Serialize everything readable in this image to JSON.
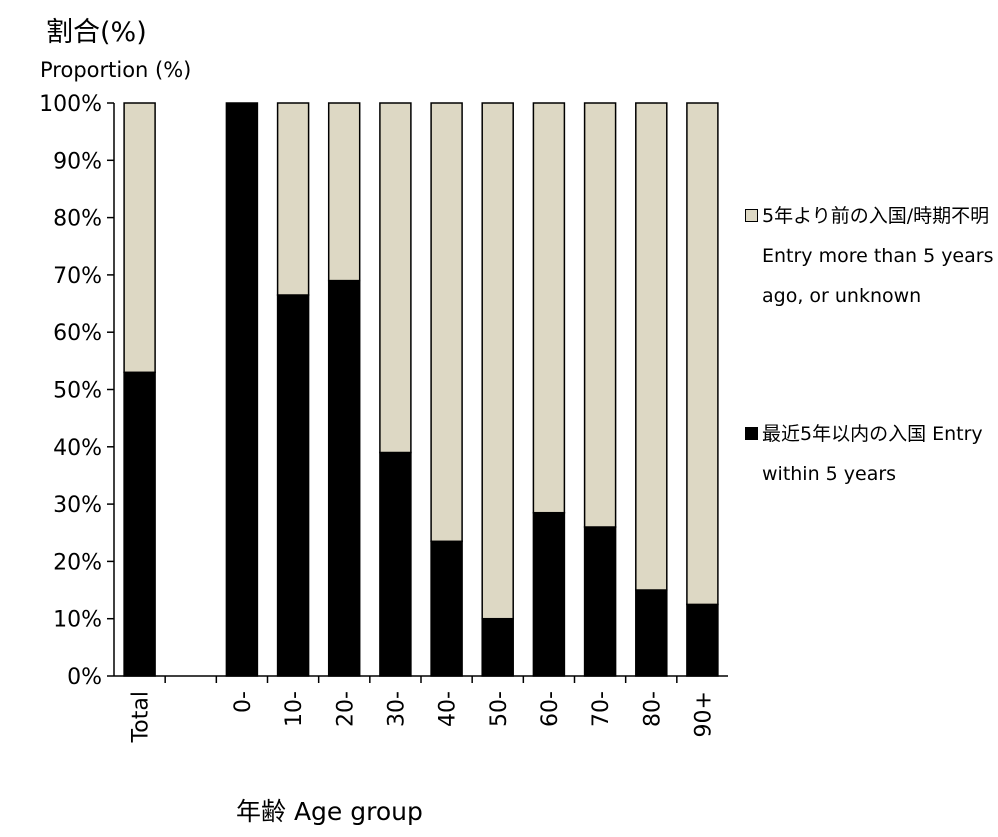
{
  "chart_data": {
    "type": "bar",
    "stacked": true,
    "y_title_ja": "割合(%)",
    "y_title_en": "Proportion (%)",
    "x_title": "年齢 Age group",
    "ylim": [
      0,
      100
    ],
    "y_ticks": [
      "0%",
      "10%",
      "20%",
      "30%",
      "40%",
      "50%",
      "60%",
      "70%",
      "80%",
      "90%",
      "100%"
    ],
    "categories": [
      "Total",
      "",
      "0-",
      "10-",
      "20-",
      "30-",
      "40-",
      "50-",
      "60-",
      "70-",
      "80-",
      "90+"
    ],
    "series": [
      {
        "name": "最近5年以内の入国 Entry within 5 years",
        "color": "#000000",
        "values": [
          53,
          null,
          100,
          66.5,
          69,
          39,
          23.5,
          10,
          28.5,
          26,
          15,
          12.5
        ]
      },
      {
        "name": "5年より前の入国/時期不明 Entry more than 5 years ago, or unknown",
        "color": "#ddd8c4",
        "values": [
          47,
          null,
          0,
          33.5,
          31,
          61,
          76.5,
          90,
          71.5,
          74,
          85,
          87.5
        ]
      }
    ],
    "legend": [
      {
        "text": "5年より前の入国/時期不明 Entry more than 5 years ago, or unknown",
        "color": "#ddd8c4"
      },
      {
        "text": "最近5年以内の入国 Entry within 5 years",
        "color": "#000000"
      }
    ],
    "legend_position": "right",
    "grid": false
  }
}
